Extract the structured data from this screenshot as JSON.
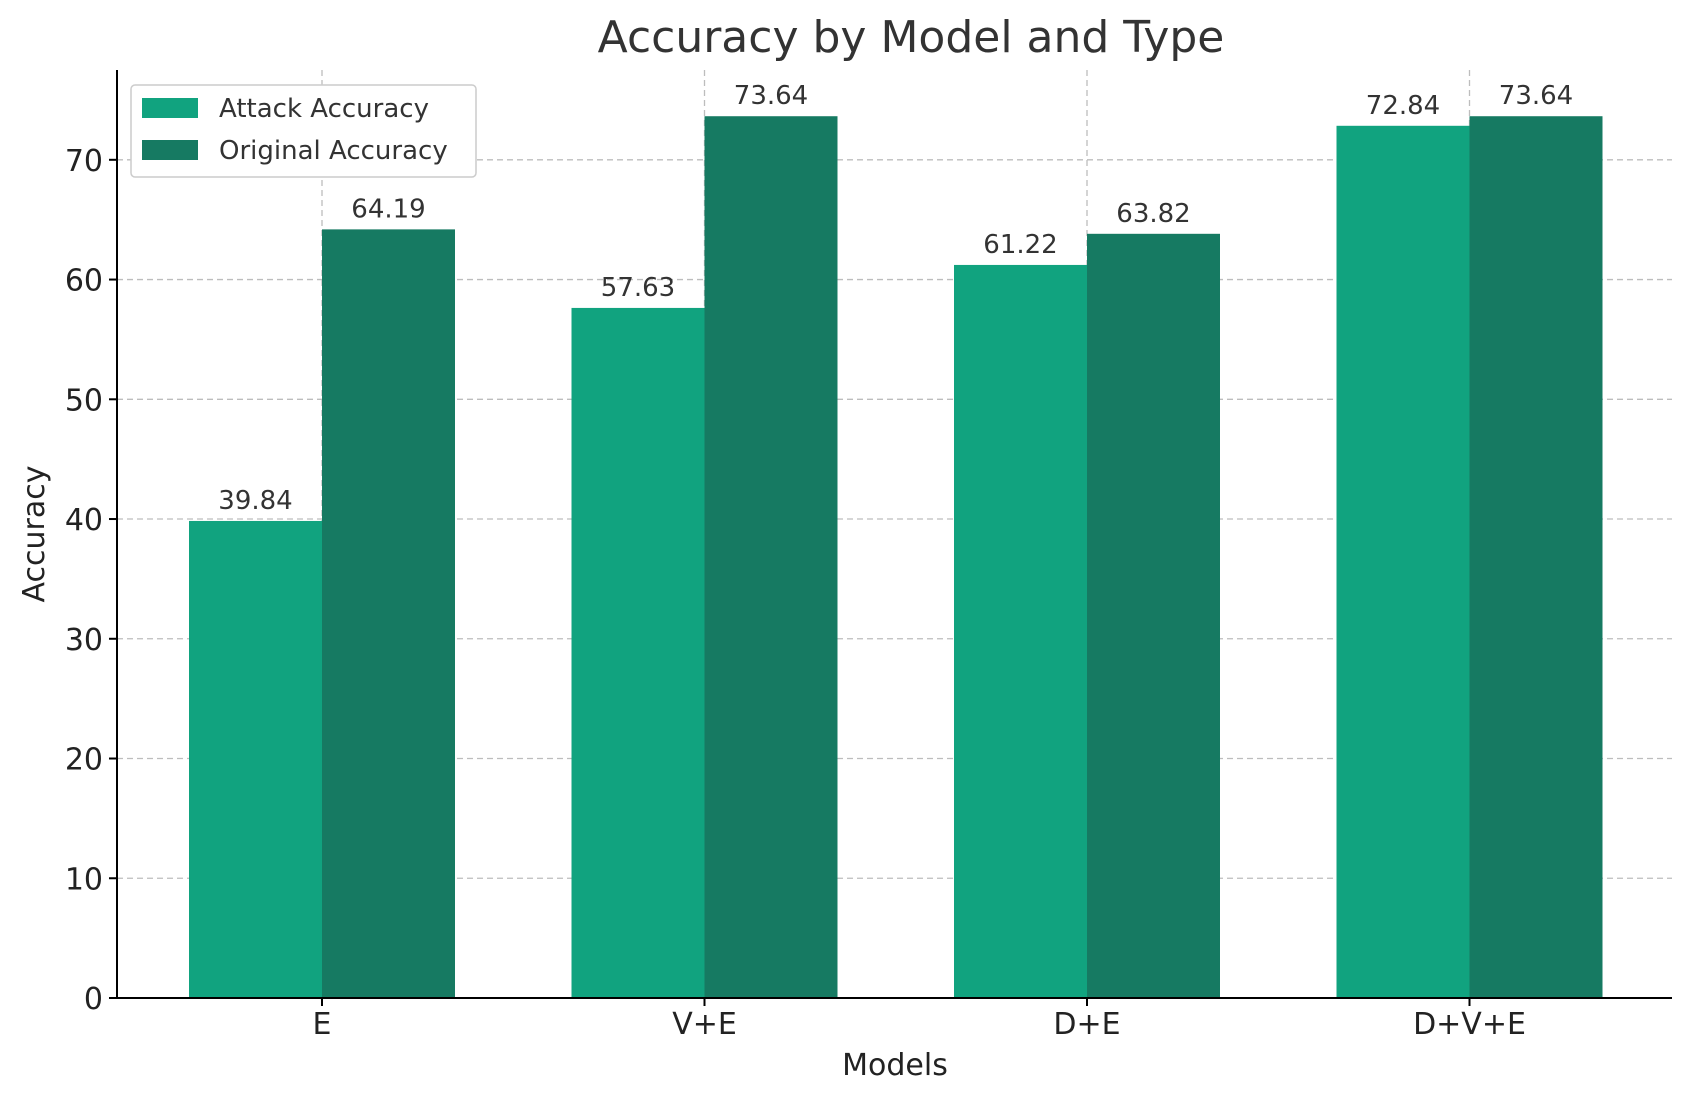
{
  "chart_data": {
    "type": "bar",
    "title": "Accuracy by Model and Type",
    "xlabel": "Models",
    "ylabel": "Accuracy",
    "categories": [
      "E",
      "V+E",
      "D+E",
      "D+V+E"
    ],
    "series": [
      {
        "name": "Attack Accuracy",
        "color": "#11a37f",
        "values": [
          39.84,
          57.63,
          61.22,
          72.84
        ]
      },
      {
        "name": "Original Accuracy",
        "color": "#167a62",
        "values": [
          64.19,
          73.64,
          63.82,
          73.64
        ]
      }
    ],
    "ylim": [
      0,
      77.5
    ],
    "yticks": [
      0,
      10,
      20,
      30,
      40,
      50,
      60,
      70
    ],
    "grid": true,
    "legend": "top-left"
  }
}
